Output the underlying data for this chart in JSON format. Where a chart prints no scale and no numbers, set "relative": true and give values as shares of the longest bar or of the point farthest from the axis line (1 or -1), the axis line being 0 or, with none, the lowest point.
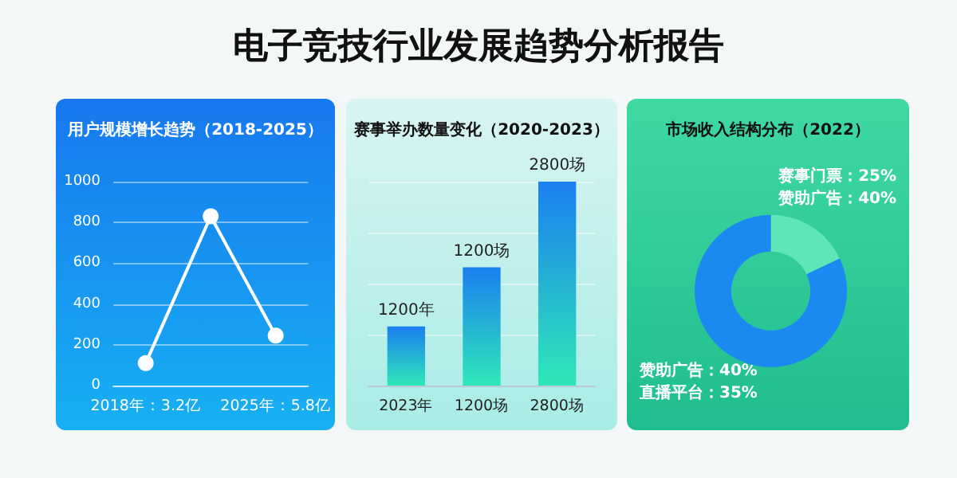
{
  "chart_data": [
    {
      "type": "other",
      "title": "电子竞技行业发展趋势分析报告"
    },
    {
      "type": "line",
      "title": "用户规模增长趋势（2018-2025）",
      "categories": [
        "2018年：3.2亿",
        null,
        "2025年：5.8亿"
      ],
      "series": [
        {
          "color": "#ffffff",
          "values": [
            110,
            830,
            245
          ]
        }
      ],
      "ylim": [
        0,
        1000
      ],
      "yticks": [
        0,
        200,
        400,
        600,
        800,
        1000
      ],
      "grid": "y",
      "marker": "circle"
    },
    {
      "type": "bar",
      "title": "赛事举办数量变化（2020-2023）",
      "categories": [
        "2023年",
        "1200场",
        "2800场"
      ],
      "series": [
        {
          "color": "#1a7ff0",
          "values": [
            0.29,
            0.58,
            1
          ]
        }
      ],
      "relative": true,
      "value_labels": [
        "1200年",
        "1200场",
        "2800场"
      ],
      "grid": "y"
    },
    {
      "type": "donut",
      "title": "市场收入结构分布（2022）",
      "categories": [
        null,
        null
      ],
      "values": [
        18,
        82
      ],
      "colors": [
        "#5ee6b8",
        "#1a8af0"
      ],
      "annotations": [
        "赛事门票：25%\n赞助广告：40%",
        "赞助广告：40%\n直播平台：35%"
      ]
    }
  ]
}
